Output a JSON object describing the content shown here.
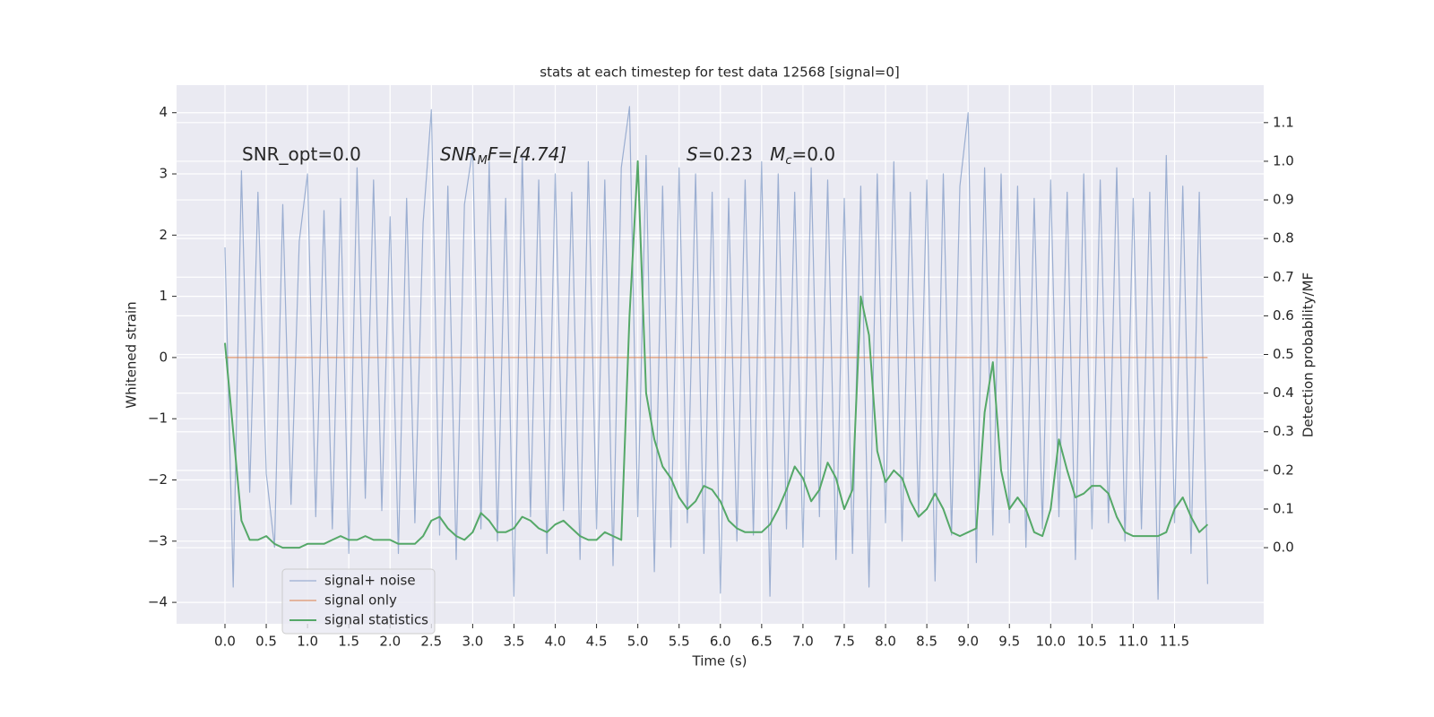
{
  "chart_data": {
    "type": "line",
    "title": "stats at each timestep for test data 12568 [signal=0]",
    "xlabel": "Time (s)",
    "ylabel": "Whitened strain",
    "y2label": "Detection probability/MF",
    "xlim": [
      -0.586,
      12.58
    ],
    "ylim": [
      -4.35,
      4.45
    ],
    "y2lim": [
      -0.197,
      1.197
    ],
    "xticks": [
      {
        "value": 0,
        "label": "0.0"
      },
      0.5,
      {
        "value": 1,
        "label": "1.0"
      },
      1.5,
      {
        "value": 2,
        "label": "2.0"
      },
      2.5,
      {
        "value": 3,
        "label": "3.0"
      },
      3.5,
      {
        "value": 4,
        "label": "4.0"
      },
      4.5,
      {
        "value": 5,
        "label": "5.0"
      },
      5.5,
      {
        "value": 6,
        "label": "6.0"
      },
      6.5,
      {
        "value": 7,
        "label": "7.0"
      },
      7.5,
      {
        "value": 8,
        "label": "8.0"
      },
      8.5,
      {
        "value": 9,
        "label": "9.0"
      },
      9.5,
      {
        "value": 10,
        "label": "10.0"
      },
      10.5,
      {
        "value": 11,
        "label": "11.0"
      },
      11.5
    ],
    "yticks": [
      {
        "value": -4,
        "label": "−4"
      },
      {
        "value": -3,
        "label": "−3"
      },
      {
        "value": -2,
        "label": "−2"
      },
      {
        "value": -1,
        "label": "−1"
      },
      0,
      1,
      2,
      3,
      4
    ],
    "y2ticks": [
      {
        "value": 0,
        "label": "0.0"
      },
      0.1,
      0.2,
      0.3,
      0.4,
      0.5,
      0.6,
      0.7,
      0.8,
      0.9,
      {
        "value": 1,
        "label": "1.0"
      },
      1.1
    ],
    "grid": true,
    "legend": "lower left",
    "annotations": [
      {
        "parts": [
          "SNR_opt=0.0"
        ]
      },
      {
        "parts": [
          "SNR",
          "M",
          "F=[4.74]"
        ]
      },
      {
        "parts": [
          "S",
          "=0.23   ",
          "M",
          "c",
          "=0.0"
        ]
      }
    ],
    "series": [
      {
        "name": "signal+ noise",
        "color": "#4c72b0",
        "axis": "y",
        "x": [
          0,
          0.1,
          0.2,
          0.3,
          0.4,
          0.5,
          0.6,
          0.7,
          0.8,
          0.9,
          1,
          1.1,
          1.2,
          1.3,
          1.4,
          1.5,
          1.6,
          1.7,
          1.8,
          1.9,
          2,
          2.1,
          2.2,
          2.3,
          2.4,
          2.5,
          2.6,
          2.7,
          2.8,
          2.9,
          3,
          3.1,
          3.2,
          3.3,
          3.4,
          3.5,
          3.6,
          3.7,
          3.8,
          3.9,
          4,
          4.1,
          4.2,
          4.3,
          4.4,
          4.5,
          4.6,
          4.7,
          4.8,
          4.9,
          5,
          5.1,
          5.2,
          5.3,
          5.4,
          5.5,
          5.6,
          5.7,
          5.8,
          5.9,
          6,
          6.1,
          6.2,
          6.3,
          6.4,
          6.5,
          6.6,
          6.7,
          6.8,
          6.9,
          7,
          7.1,
          7.2,
          7.3,
          7.4,
          7.5,
          7.6,
          7.7,
          7.8,
          7.9,
          8,
          8.1,
          8.2,
          8.3,
          8.4,
          8.5,
          8.6,
          8.7,
          8.8,
          8.9,
          9,
          9.1,
          9.2,
          9.3,
          9.4,
          9.5,
          9.6,
          9.7,
          9.8,
          9.9,
          10,
          10.1,
          10.2,
          10.3,
          10.4,
          10.5,
          10.6,
          10.7,
          10.8,
          10.9,
          11,
          11.1,
          11.2,
          11.3,
          11.4,
          11.5,
          11.6,
          11.7,
          11.8,
          11.9
        ],
        "values": [
          1.8,
          -3.75,
          3.05,
          -2.2,
          2.7,
          -1.9,
          -3.1,
          2.5,
          -2.4,
          1.9,
          3.0,
          -2.6,
          2.4,
          -2.8,
          2.6,
          -3.2,
          3.1,
          -2.3,
          2.9,
          -2.5,
          2.3,
          -3.2,
          2.6,
          -2.7,
          2.2,
          4.05,
          -2.9,
          2.8,
          -3.3,
          2.5,
          3.4,
          -2.8,
          3.2,
          -3.0,
          2.6,
          -3.9,
          3.3,
          -2.6,
          2.9,
          -3.2,
          3.0,
          -2.5,
          2.7,
          -3.3,
          3.2,
          -2.8,
          2.9,
          -3.4,
          3.1,
          4.1,
          -2.6,
          3.3,
          -3.5,
          2.8,
          -3.1,
          3.1,
          -2.7,
          3.0,
          -3.2,
          2.7,
          -3.85,
          2.6,
          -3.0,
          2.9,
          -2.9,
          3.2,
          -3.9,
          3.0,
          -2.8,
          2.7,
          -3.1,
          3.1,
          -2.6,
          2.9,
          -3.3,
          2.6,
          -3.2,
          2.8,
          -3.75,
          3.0,
          -2.7,
          3.2,
          -3.0,
          2.7,
          -2.6,
          2.9,
          -3.65,
          3.0,
          -2.9,
          2.8,
          4.0,
          -3.35,
          3.1,
          -2.9,
          3.0,
          -2.7,
          2.8,
          -3.1,
          2.6,
          -2.8,
          2.9,
          -2.6,
          2.7,
          -3.3,
          3.0,
          -2.8,
          2.9,
          -2.7,
          3.1,
          -3.0,
          2.6,
          -2.8,
          2.7,
          -3.95,
          3.3,
          -2.7,
          2.8,
          -3.2,
          2.7,
          -3.7
        ]
      },
      {
        "name": "signal only",
        "color": "#dd8452",
        "axis": "y",
        "x": [
          0,
          11.9
        ],
        "values": [
          0,
          0
        ]
      },
      {
        "name": "signal statistics",
        "color": "#55a868",
        "axis": "y2",
        "x": [
          0,
          0.1,
          0.2,
          0.3,
          0.4,
          0.5,
          0.6,
          0.7,
          0.8,
          0.9,
          1,
          1.1,
          1.2,
          1.3,
          1.4,
          1.5,
          1.6,
          1.7,
          1.8,
          1.9,
          2,
          2.1,
          2.2,
          2.3,
          2.4,
          2.5,
          2.6,
          2.7,
          2.8,
          2.9,
          3,
          3.1,
          3.2,
          3.3,
          3.4,
          3.5,
          3.6,
          3.7,
          3.8,
          3.9,
          4,
          4.1,
          4.2,
          4.3,
          4.4,
          4.5,
          4.6,
          4.7,
          4.8,
          4.9,
          5,
          5.1,
          5.2,
          5.3,
          5.4,
          5.5,
          5.6,
          5.7,
          5.8,
          5.9,
          6,
          6.1,
          6.2,
          6.3,
          6.4,
          6.5,
          6.6,
          6.7,
          6.8,
          6.9,
          7,
          7.1,
          7.2,
          7.3,
          7.4,
          7.5,
          7.6,
          7.7,
          7.8,
          7.9,
          8,
          8.1,
          8.2,
          8.3,
          8.4,
          8.5,
          8.6,
          8.7,
          8.8,
          8.9,
          9,
          9.1,
          9.2,
          9.3,
          9.4,
          9.5,
          9.6,
          9.7,
          9.8,
          9.9,
          10,
          10.1,
          10.2,
          10.3,
          10.4,
          10.5,
          10.6,
          10.7,
          10.8,
          10.9,
          11,
          11.1,
          11.2,
          11.3,
          11.4,
          11.5,
          11.6,
          11.7,
          11.8,
          11.9
        ],
        "values": [
          0.53,
          0.3,
          0.07,
          0.02,
          0.02,
          0.03,
          0.01,
          0.0,
          0.0,
          0.0,
          0.01,
          0.01,
          0.01,
          0.02,
          0.03,
          0.02,
          0.02,
          0.03,
          0.02,
          0.02,
          0.02,
          0.01,
          0.01,
          0.01,
          0.03,
          0.07,
          0.08,
          0.05,
          0.03,
          0.02,
          0.04,
          0.09,
          0.07,
          0.04,
          0.04,
          0.05,
          0.08,
          0.07,
          0.05,
          0.04,
          0.06,
          0.07,
          0.05,
          0.03,
          0.02,
          0.02,
          0.04,
          0.03,
          0.02,
          0.6,
          1.0,
          0.4,
          0.28,
          0.21,
          0.18,
          0.13,
          0.1,
          0.12,
          0.16,
          0.15,
          0.12,
          0.07,
          0.05,
          0.04,
          0.04,
          0.04,
          0.06,
          0.1,
          0.15,
          0.21,
          0.18,
          0.12,
          0.15,
          0.22,
          0.18,
          0.1,
          0.15,
          0.65,
          0.55,
          0.25,
          0.17,
          0.2,
          0.18,
          0.12,
          0.08,
          0.1,
          0.14,
          0.1,
          0.04,
          0.03,
          0.04,
          0.05,
          0.35,
          0.48,
          0.2,
          0.1,
          0.13,
          0.1,
          0.04,
          0.03,
          0.1,
          0.28,
          0.2,
          0.13,
          0.14,
          0.16,
          0.16,
          0.14,
          0.08,
          0.04,
          0.03,
          0.03,
          0.03,
          0.03,
          0.04,
          0.1,
          0.13,
          0.08,
          0.04,
          0.06
        ]
      }
    ]
  }
}
